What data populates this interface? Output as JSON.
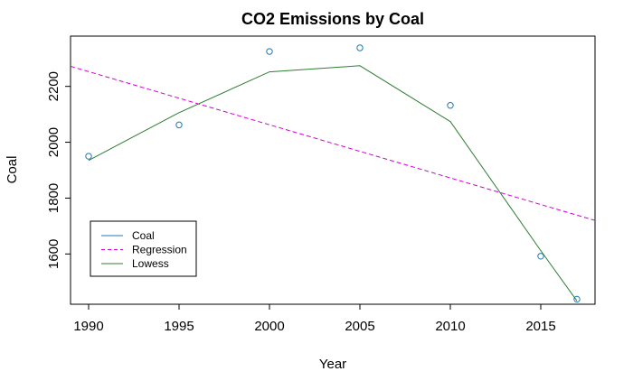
{
  "chart_data": {
    "type": "scatter",
    "title": "CO2 Emissions by Coal",
    "xlabel": "Year",
    "ylabel": "Coal",
    "xlim": [
      1989,
      2018
    ],
    "ylim": [
      1420,
      2380
    ],
    "xticks": [
      1990,
      1995,
      2000,
      2005,
      2010,
      2015
    ],
    "xtick_labels": [
      "1990",
      "1995",
      "2000",
      "2005",
      "2010",
      "2015"
    ],
    "yticks": [
      1600,
      1800,
      2000,
      2200
    ],
    "ytick_labels": [
      "1600",
      "1800",
      "2000",
      "2200"
    ],
    "grid": false,
    "legend_position": "bottom-left",
    "legend": [
      {
        "label": "Coal",
        "color": "#1f78b4",
        "style": "solid"
      },
      {
        "label": "Regression",
        "color": "#d400d4",
        "style": "dashed"
      },
      {
        "label": "Lowess",
        "color": "#2e7d32",
        "style": "solid"
      }
    ],
    "series": [
      {
        "name": "Coal",
        "kind": "points",
        "color": "#1f78b4",
        "x": [
          1990,
          1995,
          2000,
          2005,
          2010,
          2015,
          2017
        ],
        "y": [
          1950,
          2062,
          2325,
          2338,
          2132,
          1592,
          1438
        ]
      },
      {
        "name": "Regression",
        "kind": "line",
        "style": "dashed",
        "color": "#d400d4",
        "x": [
          1989,
          2018
        ],
        "y": [
          2272,
          1720
        ]
      },
      {
        "name": "Lowess",
        "kind": "line",
        "style": "solid",
        "color": "#2e7d32",
        "x": [
          1990,
          1995,
          2000,
          2005,
          2010,
          2015,
          2017
        ],
        "y": [
          1935,
          2106,
          2252,
          2274,
          2074,
          1612,
          1432
        ]
      }
    ]
  }
}
